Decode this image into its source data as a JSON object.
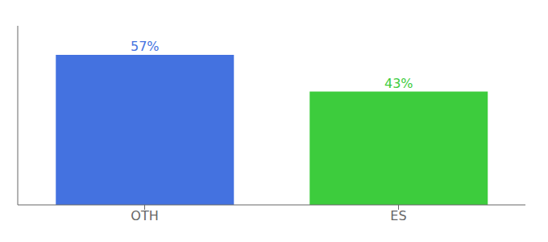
{
  "chart_data": {
    "type": "bar",
    "categories": [
      "OTH",
      "ES"
    ],
    "values": [
      57,
      43
    ],
    "value_labels": [
      "57%",
      "43%"
    ],
    "colors": [
      "#4472e0",
      "#3dcc3d"
    ],
    "ylim": [
      0,
      68
    ],
    "yticks": [],
    "grid": false,
    "data_labels": true,
    "tick_labels": "x"
  }
}
